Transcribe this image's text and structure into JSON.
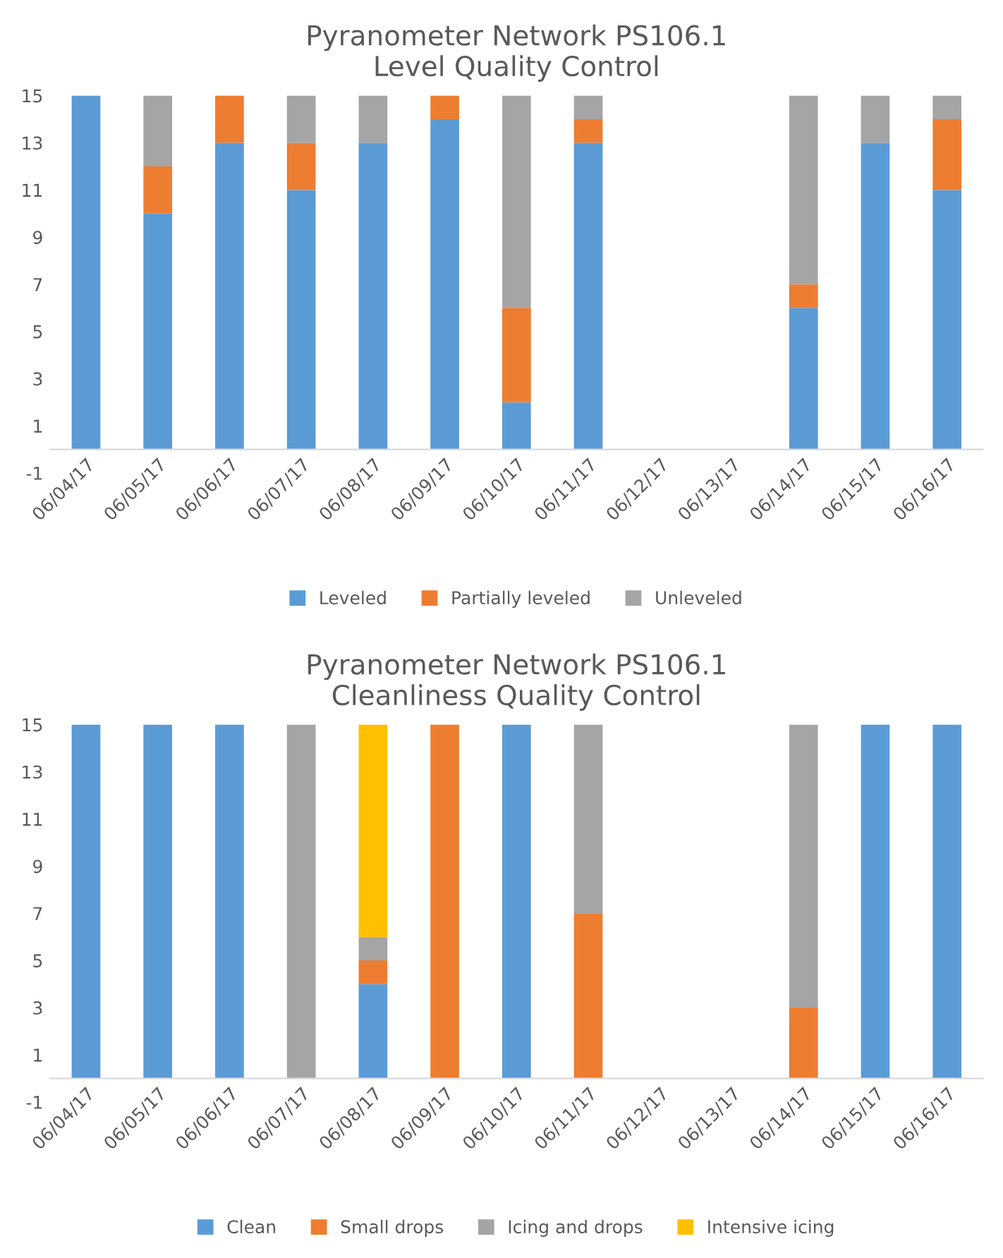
{
  "chart_data": [
    {
      "type": "bar",
      "stacked": true,
      "title": "Pyranometer Network PS106.1\nLevel Quality Control",
      "categories": [
        "06/04/17",
        "06/05/17",
        "06/06/17",
        "06/07/17",
        "06/08/17",
        "06/09/17",
        "06/10/17",
        "06/11/17",
        "06/12/17",
        "06/13/17",
        "06/14/17",
        "06/15/17",
        "06/16/17"
      ],
      "series": [
        {
          "name": "Leveled",
          "color": "#5b9bd5",
          "values": [
            15,
            10,
            13,
            11,
            13,
            14,
            2,
            13,
            0,
            0,
            6,
            13,
            11
          ]
        },
        {
          "name": "Partially leveled",
          "color": "#ed7d31",
          "values": [
            0,
            2,
            2,
            2,
            0,
            1,
            4,
            1,
            0,
            0,
            1,
            0,
            3
          ]
        },
        {
          "name": "Unleveled",
          "color": "#a5a5a5",
          "values": [
            0,
            3,
            0,
            2,
            2,
            0,
            9,
            1,
            0,
            0,
            8,
            2,
            1
          ]
        }
      ],
      "ylim": [
        -1,
        15
      ],
      "yticks": [
        -1,
        1,
        3,
        5,
        7,
        9,
        11,
        13,
        15
      ],
      "grid": false,
      "legend": "bottom"
    },
    {
      "type": "bar",
      "stacked": true,
      "title": "Pyranometer Network PS106.1\nCleanliness Quality Control",
      "categories": [
        "06/04/17",
        "06/05/17",
        "06/06/17",
        "06/07/17",
        "06/08/17",
        "06/09/17",
        "06/10/17",
        "06/11/17",
        "06/12/17",
        "06/13/17",
        "06/14/17",
        "06/15/17",
        "06/16/17"
      ],
      "series": [
        {
          "name": "Clean",
          "color": "#5b9bd5",
          "values": [
            15,
            15,
            15,
            0,
            4,
            0,
            15,
            0,
            0,
            0,
            0,
            15,
            15
          ]
        },
        {
          "name": "Small drops",
          "color": "#ed7d31",
          "values": [
            0,
            0,
            0,
            0,
            1,
            15,
            0,
            7,
            0,
            0,
            3,
            0,
            0
          ]
        },
        {
          "name": "Icing and drops",
          "color": "#a5a5a5",
          "values": [
            0,
            0,
            0,
            15,
            1,
            0,
            0,
            8,
            0,
            0,
            12,
            0,
            0
          ]
        },
        {
          "name": "Intensive icing",
          "color": "#ffc000",
          "values": [
            0,
            0,
            0,
            0,
            9,
            0,
            0,
            0,
            0,
            0,
            0,
            0,
            0
          ]
        }
      ],
      "ylim": [
        -1,
        15
      ],
      "yticks": [
        -1,
        1,
        3,
        5,
        7,
        9,
        11,
        13,
        15
      ],
      "grid": false,
      "legend": "bottom"
    }
  ]
}
